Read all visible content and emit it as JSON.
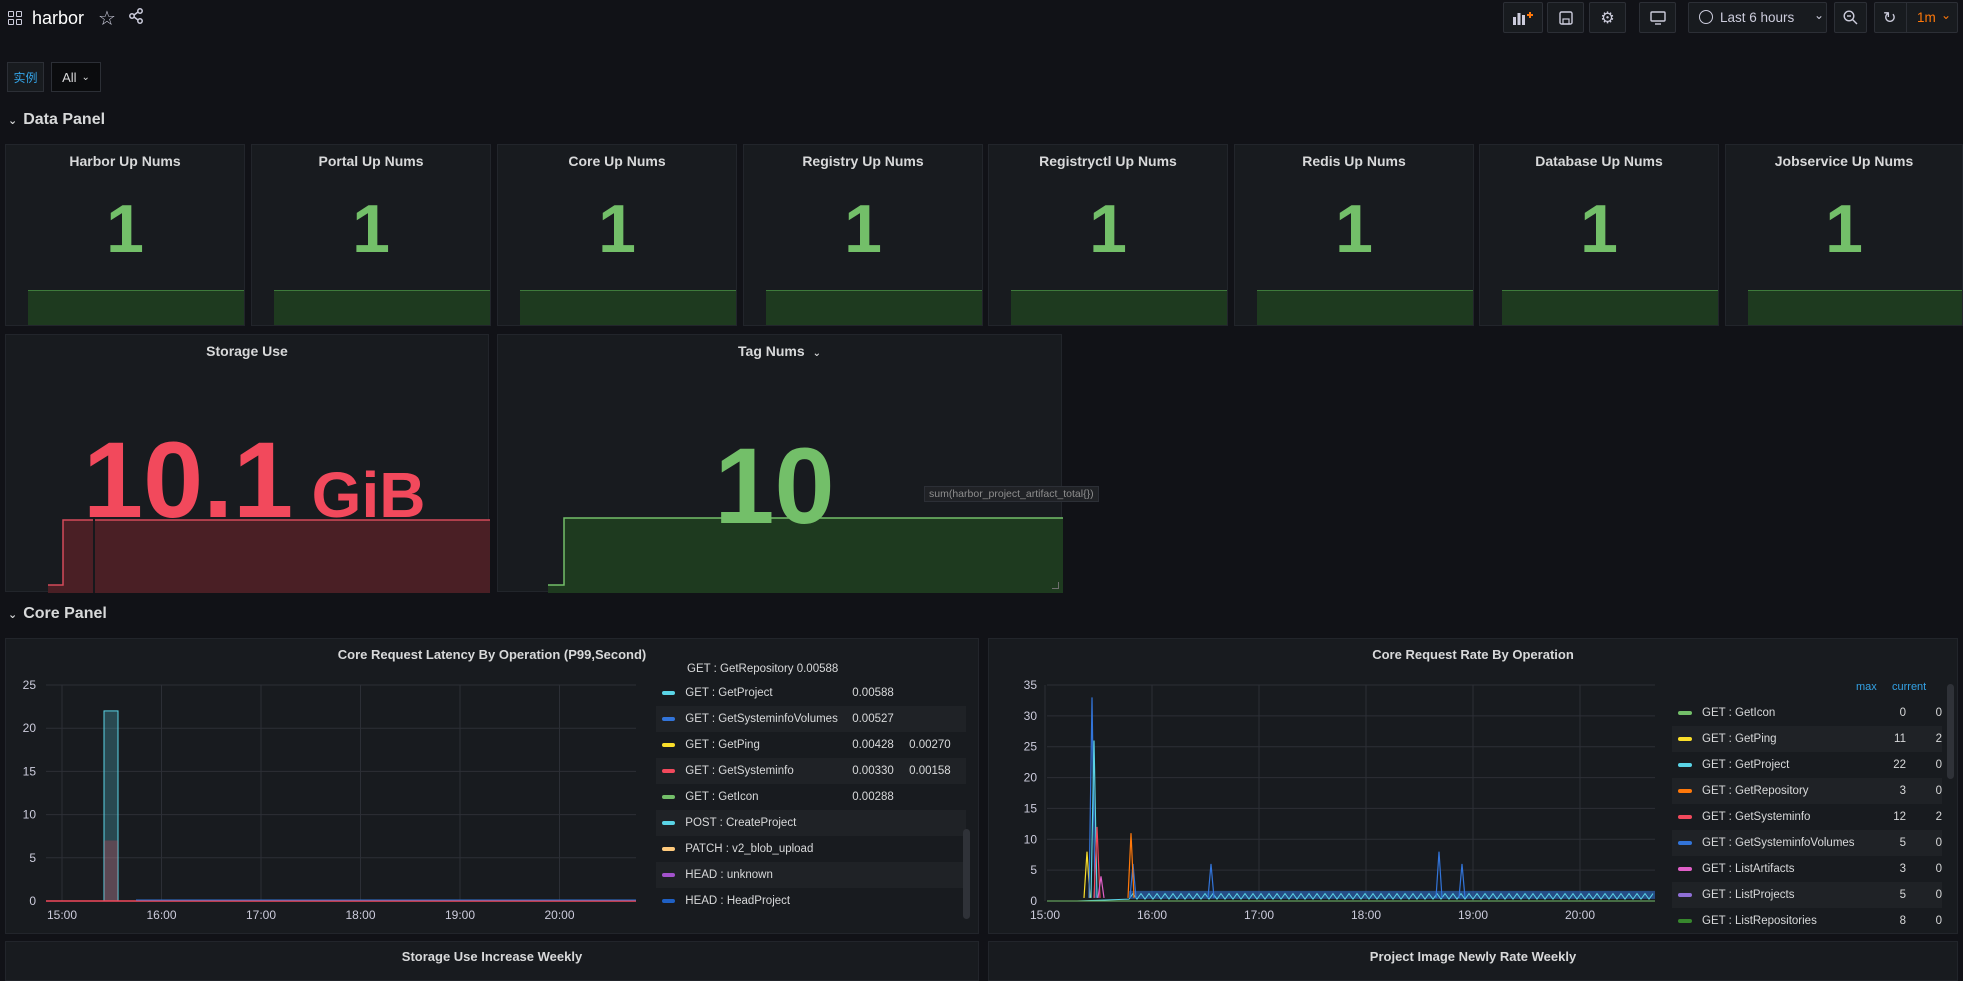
{
  "header": {
    "title": "harbor",
    "time_range": "Last 6 hours",
    "refresh_interval": "1m"
  },
  "variables": {
    "label": "实例",
    "value": "All"
  },
  "rows": {
    "data_panel": "Data Panel",
    "core_panel": "Core Panel"
  },
  "stat_panels": [
    {
      "title": "Harbor Up Nums",
      "value": "1"
    },
    {
      "title": "Portal Up Nums",
      "value": "1"
    },
    {
      "title": "Core Up Nums",
      "value": "1"
    },
    {
      "title": "Registry Up Nums",
      "value": "1"
    },
    {
      "title": "Registryctl Up Nums",
      "value": "1"
    },
    {
      "title": "Redis Up Nums",
      "value": "1"
    },
    {
      "title": "Database Up Nums",
      "value": "1"
    },
    {
      "title": "Jobservice Up Nums",
      "value": "1"
    }
  ],
  "storage": {
    "title": "Storage Use",
    "value": "10.1",
    "unit": "GiB"
  },
  "tags": {
    "title": "Tag Nums",
    "value": "10",
    "tooltip": "sum(harbor_project_artifact_total{})"
  },
  "latency_panel": {
    "title": "Core Request Latency By Operation (P99,Second)",
    "legend_cut": "GET : GetRepository   0.00588",
    "legend": [
      {
        "name": "GET : GetProject",
        "max": "0.00588",
        "current": "",
        "color": "#5ad4e6"
      },
      {
        "name": "GET : GetSysteminfoVolumes",
        "max": "0.00527",
        "current": "",
        "color": "#3274d9"
      },
      {
        "name": "GET : GetPing",
        "max": "0.00428",
        "current": "0.00270",
        "color": "#fade2a"
      },
      {
        "name": "GET : GetSysteminfo",
        "max": "0.00330",
        "current": "0.00158",
        "color": "#f2495c"
      },
      {
        "name": "GET : GetIcon",
        "max": "0.00288",
        "current": "",
        "color": "#73bf69"
      },
      {
        "name": "POST : CreateProject",
        "max": "",
        "current": "",
        "color": "#5ad4e6"
      },
      {
        "name": "PATCH : v2_blob_upload",
        "max": "",
        "current": "",
        "color": "#ffcb7d"
      },
      {
        "name": "HEAD : unknown",
        "max": "",
        "current": "",
        "color": "#a352cc"
      },
      {
        "name": "HEAD : HeadProject",
        "max": "",
        "current": "",
        "color": "#1f60c4"
      }
    ]
  },
  "rate_panel": {
    "title": "Core Request Rate By Operation",
    "col_max": "max",
    "col_current": "current",
    "legend": [
      {
        "name": "GET : GetIcon",
        "max": "0",
        "current": "0",
        "color": "#73bf69"
      },
      {
        "name": "GET : GetPing",
        "max": "11",
        "current": "2",
        "color": "#fade2a"
      },
      {
        "name": "GET : GetProject",
        "max": "22",
        "current": "0",
        "color": "#5ad4e6"
      },
      {
        "name": "GET : GetRepository",
        "max": "3",
        "current": "0",
        "color": "#ff780a"
      },
      {
        "name": "GET : GetSysteminfo",
        "max": "12",
        "current": "2",
        "color": "#f2495c"
      },
      {
        "name": "GET : GetSysteminfoVolumes",
        "max": "5",
        "current": "0",
        "color": "#3274d9"
      },
      {
        "name": "GET : ListArtifacts",
        "max": "3",
        "current": "0",
        "color": "#e05fc7"
      },
      {
        "name": "GET : ListProjects",
        "max": "5",
        "current": "0",
        "color": "#8f6fd6"
      },
      {
        "name": "GET : ListRepositories",
        "max": "8",
        "current": "0",
        "color": "#37872d"
      }
    ]
  },
  "bottom_panels": {
    "left": "Storage Use Increase Weekly",
    "right": "Project Image Newly Rate Weekly"
  },
  "chart_data": [
    {
      "type": "line",
      "title": "Core Request Latency By Operation (P99,Second)",
      "x_ticks": [
        "15:00",
        "16:00",
        "17:00",
        "18:00",
        "19:00",
        "20:00"
      ],
      "y_ticks": [
        "0",
        "5",
        "10",
        "15",
        "20",
        "25"
      ],
      "ylim": [
        0,
        25
      ],
      "grid": true,
      "legend_placement": "right",
      "spike": {
        "x": "15:30",
        "y": 22
      }
    },
    {
      "type": "line",
      "title": "Core Request Rate By Operation",
      "x_ticks": [
        "15:00",
        "16:00",
        "17:00",
        "18:00",
        "19:00",
        "20:00"
      ],
      "y_ticks": [
        "0",
        "5",
        "10",
        "15",
        "20",
        "25",
        "30",
        "35"
      ],
      "ylim": [
        0,
        35
      ],
      "grid": true,
      "legend_placement": "right",
      "peak": {
        "x": "15:27",
        "y": 33
      }
    }
  ]
}
